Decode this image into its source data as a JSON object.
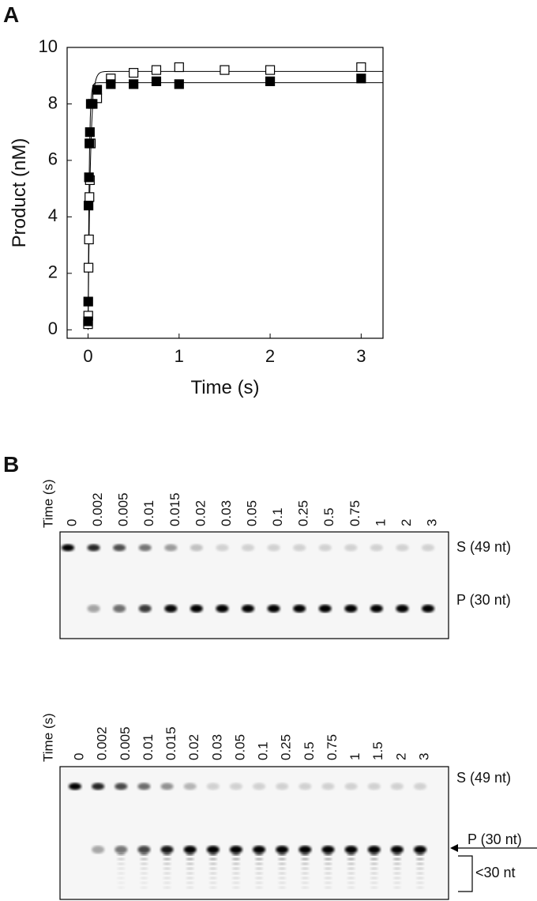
{
  "chart_data": {
    "type": "scatter",
    "panel_label": "A",
    "x_label": "Time (s)",
    "y_label": "Product (nM)",
    "xlim": [
      -0.23,
      3.24
    ],
    "xticks": [
      0,
      1,
      2,
      3
    ],
    "ylim": [
      -0.3,
      10
    ],
    "yticks": [
      0,
      2,
      4,
      6,
      8,
      10
    ],
    "series": [
      {
        "marker": "open-square",
        "color": "#000000",
        "x": [
          0,
          0.002,
          0.005,
          0.01,
          0.015,
          0.02,
          0.03,
          0.05,
          0.1,
          0.25,
          0.5,
          0.75,
          1,
          1.5,
          2,
          3
        ],
        "values": [
          0.2,
          0.5,
          2.2,
          3.2,
          4.7,
          5.3,
          6.6,
          8.0,
          8.2,
          8.9,
          9.1,
          9.2,
          9.3,
          9.2,
          9.2,
          9.3
        ],
        "fit_amplitude": 9.15,
        "fit_rate": 40
      },
      {
        "marker": "filled-square",
        "color": "#000000",
        "x": [
          0,
          0.002,
          0.005,
          0.01,
          0.015,
          0.02,
          0.03,
          0.05,
          0.1,
          0.25,
          0.5,
          0.75,
          1,
          2,
          3
        ],
        "values": [
          0.3,
          1.0,
          4.4,
          5.4,
          6.6,
          7.0,
          8.0,
          8.0,
          8.5,
          8.7,
          8.7,
          8.8,
          8.7,
          8.8,
          8.9
        ],
        "fit_amplitude": 8.75,
        "fit_rate": 80
      }
    ]
  },
  "panel_b": {
    "label": "B",
    "gels": [
      {
        "time_label": "Time (s)",
        "lanes": [
          "0",
          "0.002",
          "0.005",
          "0.01",
          "0.015",
          "0.02",
          "0.03",
          "0.05",
          "0.1",
          "0.25",
          "0.5",
          "0.75",
          "1",
          "2",
          "3"
        ],
        "bands": [
          "S (49 nt)",
          "P (30 nt)"
        ]
      },
      {
        "time_label": "Time (s)",
        "lanes": [
          "0",
          "0.002",
          "0.005",
          "0.01",
          "0.015",
          "0.02",
          "0.03",
          "0.05",
          "0.1",
          "0.25",
          "0.5",
          "0.75",
          "1",
          "1.5",
          "2",
          "3"
        ],
        "bands": [
          "S (49 nt)",
          "P (30 nt)",
          "<30 nt"
        ]
      }
    ]
  }
}
